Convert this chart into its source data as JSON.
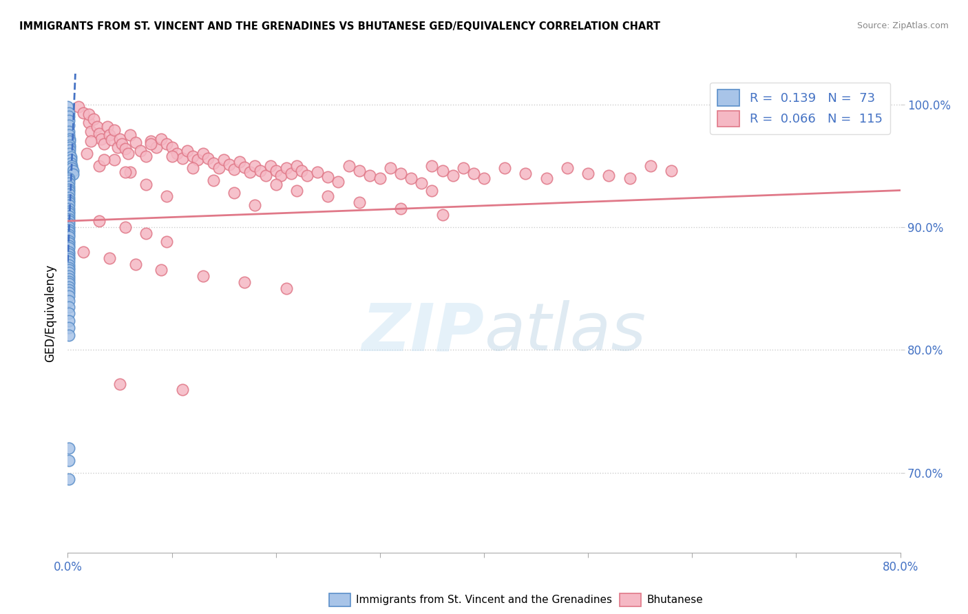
{
  "title": "IMMIGRANTS FROM ST. VINCENT AND THE GRENADINES VS BHUTANESE GED/EQUIVALENCY CORRELATION CHART",
  "source": "Source: ZipAtlas.com",
  "ylabel": "GED/Equivalency",
  "right_yticks": [
    70.0,
    80.0,
    90.0,
    100.0
  ],
  "xmin": 0.0,
  "xmax": 0.8,
  "ymin": 0.635,
  "ymax": 1.025,
  "R_blue": 0.139,
  "N_blue": 73,
  "R_pink": 0.066,
  "N_pink": 115,
  "blue_face_color": "#a8c4e8",
  "blue_edge_color": "#5b8fc9",
  "pink_face_color": "#f5b8c4",
  "pink_edge_color": "#e07888",
  "blue_line_color": "#4472c4",
  "pink_line_color": "#e07888",
  "legend_label_blue": "Immigrants from St. Vincent and the Grenadines",
  "legend_label_pink": "Bhutanese",
  "blue_scatter_x": [
    0.0,
    0.001,
    0.001,
    0.001,
    0.001,
    0.001,
    0.001,
    0.002,
    0.002,
    0.002,
    0.002,
    0.002,
    0.002,
    0.003,
    0.003,
    0.003,
    0.004,
    0.004,
    0.005,
    0.005,
    0.001,
    0.001,
    0.001,
    0.001,
    0.001,
    0.001,
    0.001,
    0.001,
    0.001,
    0.001,
    0.001,
    0.001,
    0.001,
    0.001,
    0.001,
    0.001,
    0.001,
    0.001,
    0.001,
    0.001,
    0.001,
    0.001,
    0.001,
    0.001,
    0.001,
    0.001,
    0.001,
    0.001,
    0.001,
    0.001,
    0.001,
    0.001,
    0.001,
    0.001,
    0.001,
    0.001,
    0.001,
    0.001,
    0.001,
    0.001,
    0.001,
    0.001,
    0.001,
    0.001,
    0.001,
    0.001,
    0.001,
    0.001,
    0.001,
    0.001,
    0.001,
    0.001,
    0.001
  ],
  "blue_scatter_y": [
    0.998,
    0.993,
    0.99,
    0.987,
    0.983,
    0.978,
    0.975,
    0.972,
    0.97,
    0.967,
    0.965,
    0.963,
    0.96,
    0.957,
    0.955,
    0.952,
    0.95,
    0.948,
    0.946,
    0.943,
    0.94,
    0.938,
    0.936,
    0.933,
    0.931,
    0.929,
    0.927,
    0.924,
    0.922,
    0.92,
    0.918,
    0.915,
    0.913,
    0.911,
    0.909,
    0.907,
    0.905,
    0.903,
    0.9,
    0.898,
    0.896,
    0.894,
    0.892,
    0.889,
    0.887,
    0.885,
    0.883,
    0.88,
    0.878,
    0.876,
    0.874,
    0.872,
    0.869,
    0.867,
    0.865,
    0.863,
    0.86,
    0.858,
    0.856,
    0.854,
    0.851,
    0.849,
    0.847,
    0.844,
    0.84,
    0.835,
    0.83,
    0.824,
    0.818,
    0.812,
    0.72,
    0.71,
    0.695
  ],
  "pink_scatter_x": [
    0.01,
    0.015,
    0.02,
    0.02,
    0.022,
    0.025,
    0.028,
    0.03,
    0.032,
    0.035,
    0.038,
    0.04,
    0.042,
    0.045,
    0.048,
    0.05,
    0.052,
    0.055,
    0.058,
    0.06,
    0.065,
    0.07,
    0.075,
    0.08,
    0.085,
    0.09,
    0.095,
    0.1,
    0.105,
    0.11,
    0.115,
    0.12,
    0.125,
    0.13,
    0.135,
    0.14,
    0.145,
    0.15,
    0.155,
    0.16,
    0.165,
    0.17,
    0.175,
    0.18,
    0.185,
    0.19,
    0.195,
    0.2,
    0.205,
    0.21,
    0.215,
    0.22,
    0.225,
    0.23,
    0.24,
    0.25,
    0.26,
    0.27,
    0.28,
    0.29,
    0.3,
    0.31,
    0.32,
    0.33,
    0.34,
    0.35,
    0.36,
    0.37,
    0.38,
    0.39,
    0.4,
    0.42,
    0.44,
    0.46,
    0.48,
    0.5,
    0.52,
    0.54,
    0.56,
    0.58,
    0.022,
    0.03,
    0.045,
    0.06,
    0.08,
    0.1,
    0.12,
    0.14,
    0.16,
    0.18,
    0.2,
    0.22,
    0.25,
    0.28,
    0.32,
    0.36,
    0.03,
    0.055,
    0.075,
    0.095,
    0.018,
    0.035,
    0.055,
    0.075,
    0.095,
    0.35,
    0.015,
    0.04,
    0.065,
    0.09,
    0.13,
    0.17,
    0.21,
    0.05,
    0.11
  ],
  "pink_scatter_y": [
    0.998,
    0.993,
    0.985,
    0.992,
    0.978,
    0.988,
    0.982,
    0.976,
    0.972,
    0.968,
    0.982,
    0.975,
    0.971,
    0.979,
    0.965,
    0.972,
    0.968,
    0.964,
    0.96,
    0.975,
    0.969,
    0.962,
    0.958,
    0.97,
    0.965,
    0.972,
    0.968,
    0.965,
    0.96,
    0.956,
    0.962,
    0.958,
    0.955,
    0.96,
    0.956,
    0.952,
    0.948,
    0.955,
    0.951,
    0.947,
    0.953,
    0.949,
    0.945,
    0.95,
    0.946,
    0.942,
    0.95,
    0.946,
    0.942,
    0.948,
    0.944,
    0.95,
    0.946,
    0.942,
    0.945,
    0.941,
    0.937,
    0.95,
    0.946,
    0.942,
    0.94,
    0.948,
    0.944,
    0.94,
    0.936,
    0.95,
    0.946,
    0.942,
    0.948,
    0.944,
    0.94,
    0.948,
    0.944,
    0.94,
    0.948,
    0.944,
    0.942,
    0.94,
    0.95,
    0.946,
    0.97,
    0.95,
    0.955,
    0.945,
    0.968,
    0.958,
    0.948,
    0.938,
    0.928,
    0.918,
    0.935,
    0.93,
    0.925,
    0.92,
    0.915,
    0.91,
    0.905,
    0.9,
    0.895,
    0.888,
    0.96,
    0.955,
    0.945,
    0.935,
    0.925,
    0.93,
    0.88,
    0.875,
    0.87,
    0.865,
    0.86,
    0.855,
    0.85,
    0.772,
    0.768
  ]
}
